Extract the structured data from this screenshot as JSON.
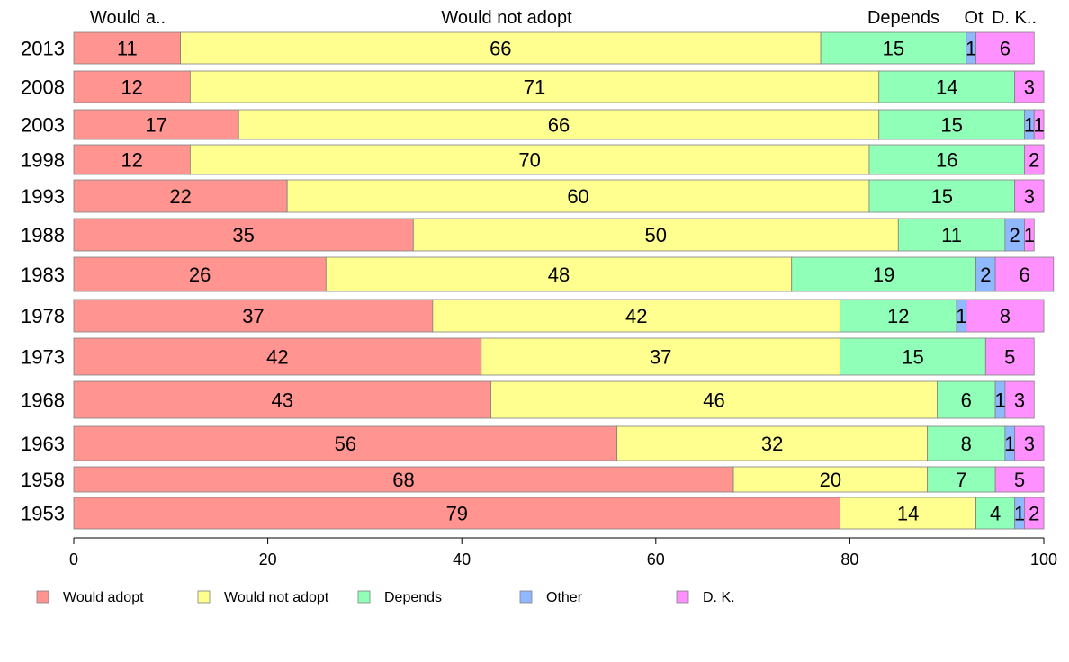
{
  "chart_data": {
    "type": "bar",
    "orientation": "horizontal",
    "stacked": true,
    "title": "",
    "xlabel": "",
    "ylabel": "",
    "xlim": [
      0,
      100
    ],
    "x_ticks": [
      0,
      20,
      40,
      60,
      80,
      100
    ],
    "grid": false,
    "legend_position": "bottom",
    "categories": [
      "2013",
      "2008",
      "2003",
      "1998",
      "1993",
      "1988",
      "1983",
      "1978",
      "1973",
      "1968",
      "1963",
      "1958",
      "1953"
    ],
    "series": [
      {
        "name": "Would adopt",
        "color": "#ff9490",
        "values": [
          11,
          12,
          17,
          12,
          22,
          35,
          26,
          37,
          42,
          43,
          56,
          68,
          79
        ]
      },
      {
        "name": "Would not adopt",
        "color": "#ffff90",
        "values": [
          66,
          71,
          66,
          70,
          60,
          50,
          48,
          42,
          37,
          46,
          32,
          20,
          14
        ]
      },
      {
        "name": "Depends",
        "color": "#90ffb8",
        "values": [
          15,
          14,
          15,
          16,
          15,
          11,
          19,
          12,
          15,
          6,
          8,
          7,
          4
        ]
      },
      {
        "name": "Other",
        "color": "#90b8ff",
        "values": [
          1,
          0,
          1,
          0,
          0,
          2,
          2,
          1,
          0,
          1,
          1,
          0,
          1
        ]
      },
      {
        "name": "D. K.",
        "color": "#ff90ff",
        "values": [
          6,
          3,
          1,
          2,
          3,
          1,
          6,
          8,
          5,
          3,
          3,
          5,
          2
        ]
      }
    ],
    "top_labels": [
      "Would a..",
      "Would not adopt",
      "Depends",
      "Ot",
      "D. K.."
    ]
  }
}
